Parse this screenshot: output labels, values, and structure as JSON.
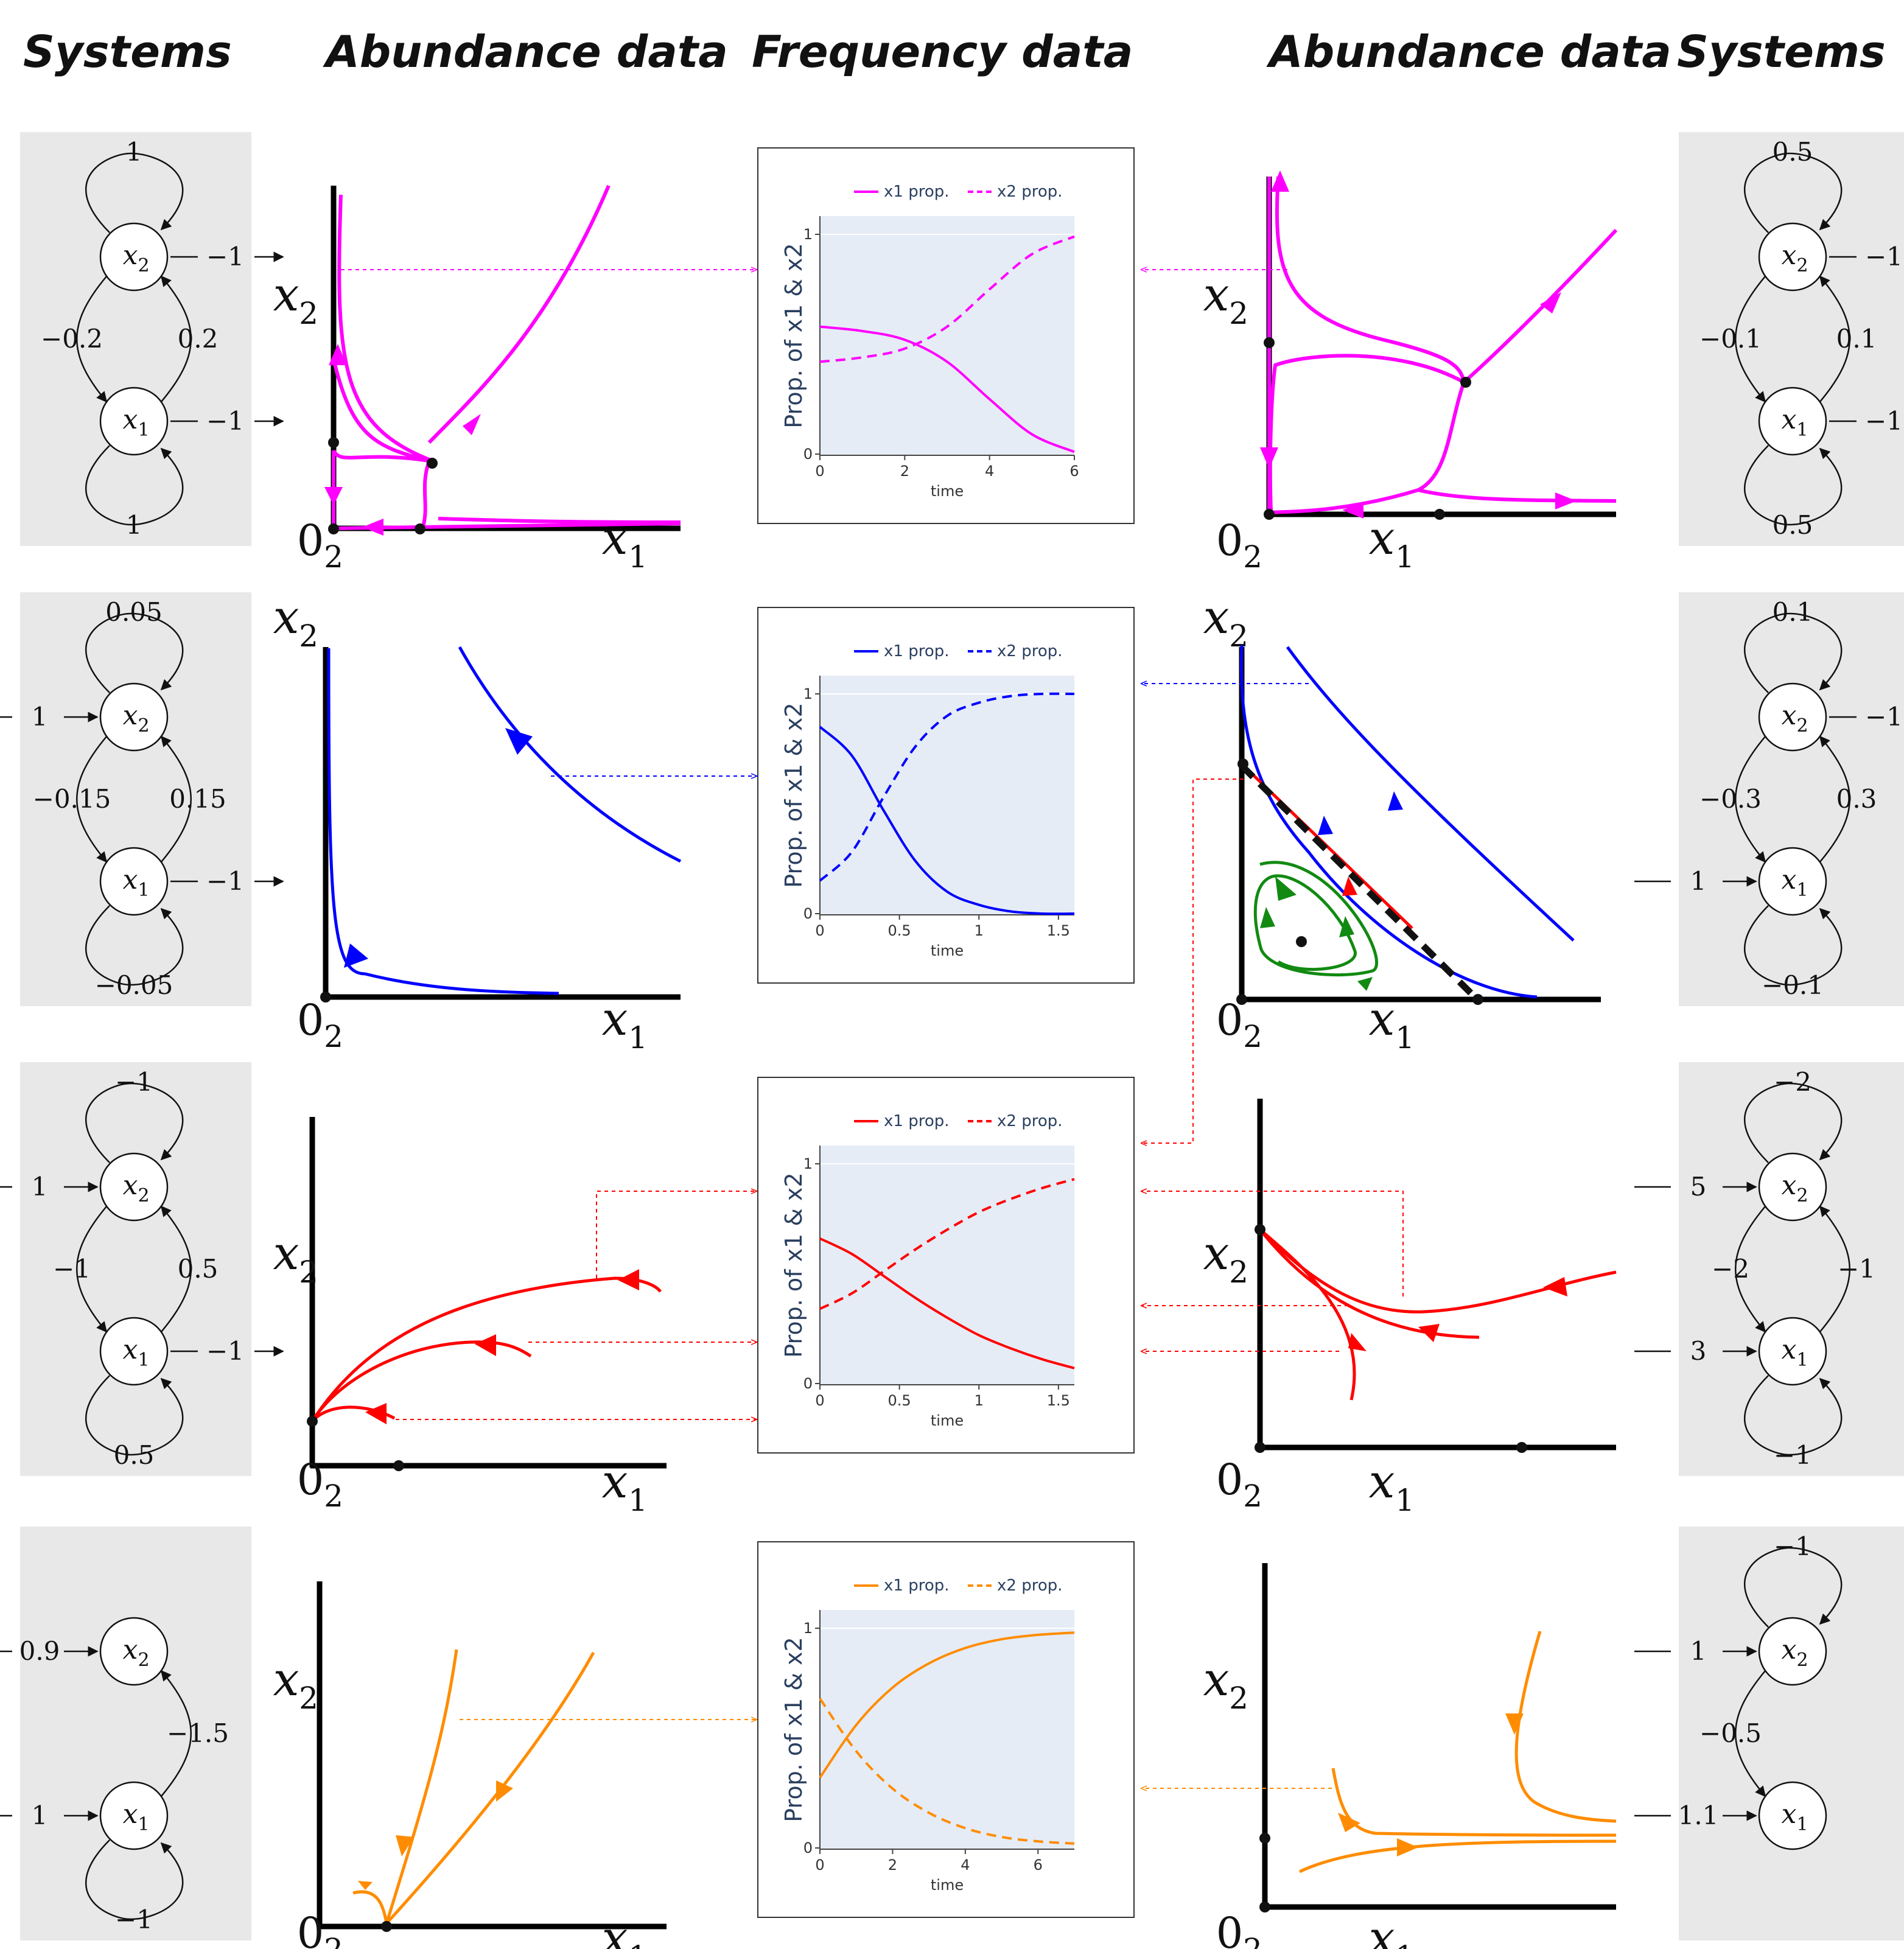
{
  "headers": {
    "systems_left": "Systems",
    "abundance_left": "Abundance data",
    "frequency": "Frequency data",
    "abundance_right": "Abundance data",
    "systems_right": "Systems"
  },
  "axes": {
    "x1": "x",
    "x1_sub": "1",
    "x2": "x",
    "x2_sub": "2",
    "origin": "0",
    "origin_sub": "2"
  },
  "node_labels": {
    "var": "x",
    "sub1": "1",
    "sub2": "2"
  },
  "systems_left": [
    {
      "self2": "1",
      "self1": "1",
      "in2": "−1",
      "in1": "−1",
      "cross_left": "−0.2",
      "cross_right": "0.2",
      "in2_dir": "out",
      "in1_dir": "out"
    },
    {
      "self2": "0.05",
      "self1": "−0.05",
      "in2": "1",
      "in1": "−1",
      "cross_left": "−0.15",
      "cross_right": "0.15",
      "in2_dir": "in",
      "in1_dir": "out"
    },
    {
      "self2": "−1",
      "self1": "0.5",
      "in2": "1",
      "in1": "−1",
      "cross_left": "−1",
      "cross_right": "0.5",
      "in2_dir": "in",
      "in1_dir": "out"
    },
    {
      "self2": "",
      "self1": "−1",
      "in2": "0.9",
      "in1": "1",
      "cross_left": "",
      "cross_right": "−1.5",
      "in2_dir": "in",
      "in1_dir": "in"
    }
  ],
  "systems_right": [
    {
      "self2": "0.5",
      "self1": "0.5",
      "in2": "−1",
      "in1": "−1",
      "cross_left": "−0.1",
      "cross_right": "0.1",
      "in2_dir": "out",
      "in1_dir": "out"
    },
    {
      "self2": "0.1",
      "self1": "−0.1",
      "in2": "−1",
      "in1": "1",
      "cross_left": "−0.3",
      "cross_right": "0.3",
      "in2_dir": "out",
      "in1_dir": "in"
    },
    {
      "self2": "−2",
      "self1": "−1",
      "in2": "5",
      "in1": "3",
      "cross_left": "−2",
      "cross_right": "−1",
      "in2_dir": "in",
      "in1_dir": "in"
    },
    {
      "self2": "−1",
      "self1": "",
      "in2": "1",
      "in1": "1.1",
      "cross_left": "−0.5",
      "cross_right": "",
      "in2_dir": "in",
      "in1_dir": "in"
    }
  ],
  "colors": {
    "row1": "#ff00ff",
    "row2": "#0000ff",
    "row3": "#ff0000",
    "row4": "#ff8c00",
    "green": "#128a12",
    "plot_bg": "#e5ecf6",
    "panel_bg": "#e8e8e8"
  },
  "chart_data": [
    {
      "type": "line",
      "color": "#ff00ff",
      "legend": [
        "x1 prop.",
        "x2 prop."
      ],
      "ylabel": "Prop. of x1 & x2",
      "xlabel": "time",
      "xlim": [
        0,
        6
      ],
      "ylim": [
        0,
        1
      ],
      "xticks": [
        "0",
        "2",
        "4",
        "6"
      ],
      "yticks": [
        "0",
        "1"
      ],
      "series": [
        {
          "name": "x1 prop.",
          "dash": false,
          "x": [
            0,
            1,
            2,
            3,
            4,
            5,
            6
          ],
          "values": [
            0.58,
            0.56,
            0.52,
            0.42,
            0.25,
            0.09,
            0.01
          ]
        },
        {
          "name": "x2 prop.",
          "dash": true,
          "x": [
            0,
            1,
            2,
            3,
            4,
            5,
            6
          ],
          "values": [
            0.42,
            0.44,
            0.48,
            0.58,
            0.75,
            0.91,
            0.99
          ]
        }
      ]
    },
    {
      "type": "line",
      "color": "#0000ff",
      "legend": [
        "x1 prop.",
        "x2 prop."
      ],
      "ylabel": "Prop. of x1 & x2",
      "xlabel": "time",
      "xlim": [
        0,
        1.6
      ],
      "ylim": [
        0,
        1
      ],
      "xticks": [
        "0",
        "0.5",
        "1",
        "1.5"
      ],
      "yticks": [
        "0",
        "1"
      ],
      "series": [
        {
          "name": "x1 prop.",
          "dash": false,
          "x": [
            0,
            0.2,
            0.4,
            0.6,
            0.8,
            1.0,
            1.2,
            1.4,
            1.6
          ],
          "values": [
            0.85,
            0.72,
            0.47,
            0.24,
            0.1,
            0.04,
            0.01,
            0.0,
            0.0
          ]
        },
        {
          "name": "x2 prop.",
          "dash": true,
          "x": [
            0,
            0.2,
            0.4,
            0.6,
            0.8,
            1.0,
            1.2,
            1.4,
            1.6
          ],
          "values": [
            0.15,
            0.28,
            0.53,
            0.76,
            0.9,
            0.96,
            0.99,
            1.0,
            1.0
          ]
        }
      ]
    },
    {
      "type": "line",
      "color": "#ff0000",
      "legend": [
        "x1 prop.",
        "x2 prop."
      ],
      "ylabel": "Prop. of x1 & x2",
      "xlabel": "time",
      "xlim": [
        0,
        1.6
      ],
      "ylim": [
        0,
        1
      ],
      "xticks": [
        "0",
        "0.5",
        "1",
        "1.5"
      ],
      "yticks": [
        "0",
        "1"
      ],
      "series": [
        {
          "name": "x1 prop.",
          "dash": false,
          "x": [
            0,
            0.2,
            0.4,
            0.6,
            0.8,
            1.0,
            1.2,
            1.4,
            1.6
          ],
          "values": [
            0.66,
            0.59,
            0.49,
            0.39,
            0.3,
            0.22,
            0.16,
            0.11,
            0.07
          ]
        },
        {
          "name": "x2 prop.",
          "dash": true,
          "x": [
            0,
            0.2,
            0.4,
            0.6,
            0.8,
            1.0,
            1.2,
            1.4,
            1.6
          ],
          "values": [
            0.34,
            0.41,
            0.51,
            0.61,
            0.7,
            0.78,
            0.84,
            0.89,
            0.93
          ]
        }
      ]
    },
    {
      "type": "line",
      "color": "#ff8c00",
      "legend": [
        "x1 prop.",
        "x2 prop."
      ],
      "ylabel": "Prop. of x1 & x2",
      "xlabel": "time",
      "xlim": [
        0,
        7
      ],
      "ylim": [
        0,
        1
      ],
      "xticks": [
        "0",
        "2",
        "4",
        "6"
      ],
      "yticks": [
        "0",
        "1"
      ],
      "series": [
        {
          "name": "x1 prop.",
          "dash": false,
          "x": [
            0,
            1,
            2,
            3,
            4,
            5,
            6,
            7
          ],
          "values": [
            0.32,
            0.56,
            0.73,
            0.84,
            0.91,
            0.95,
            0.97,
            0.98
          ]
        },
        {
          "name": "x2 prop.",
          "dash": true,
          "x": [
            0,
            1,
            2,
            3,
            4,
            5,
            6,
            7
          ],
          "values": [
            0.68,
            0.44,
            0.27,
            0.16,
            0.09,
            0.05,
            0.03,
            0.02
          ]
        }
      ]
    }
  ]
}
